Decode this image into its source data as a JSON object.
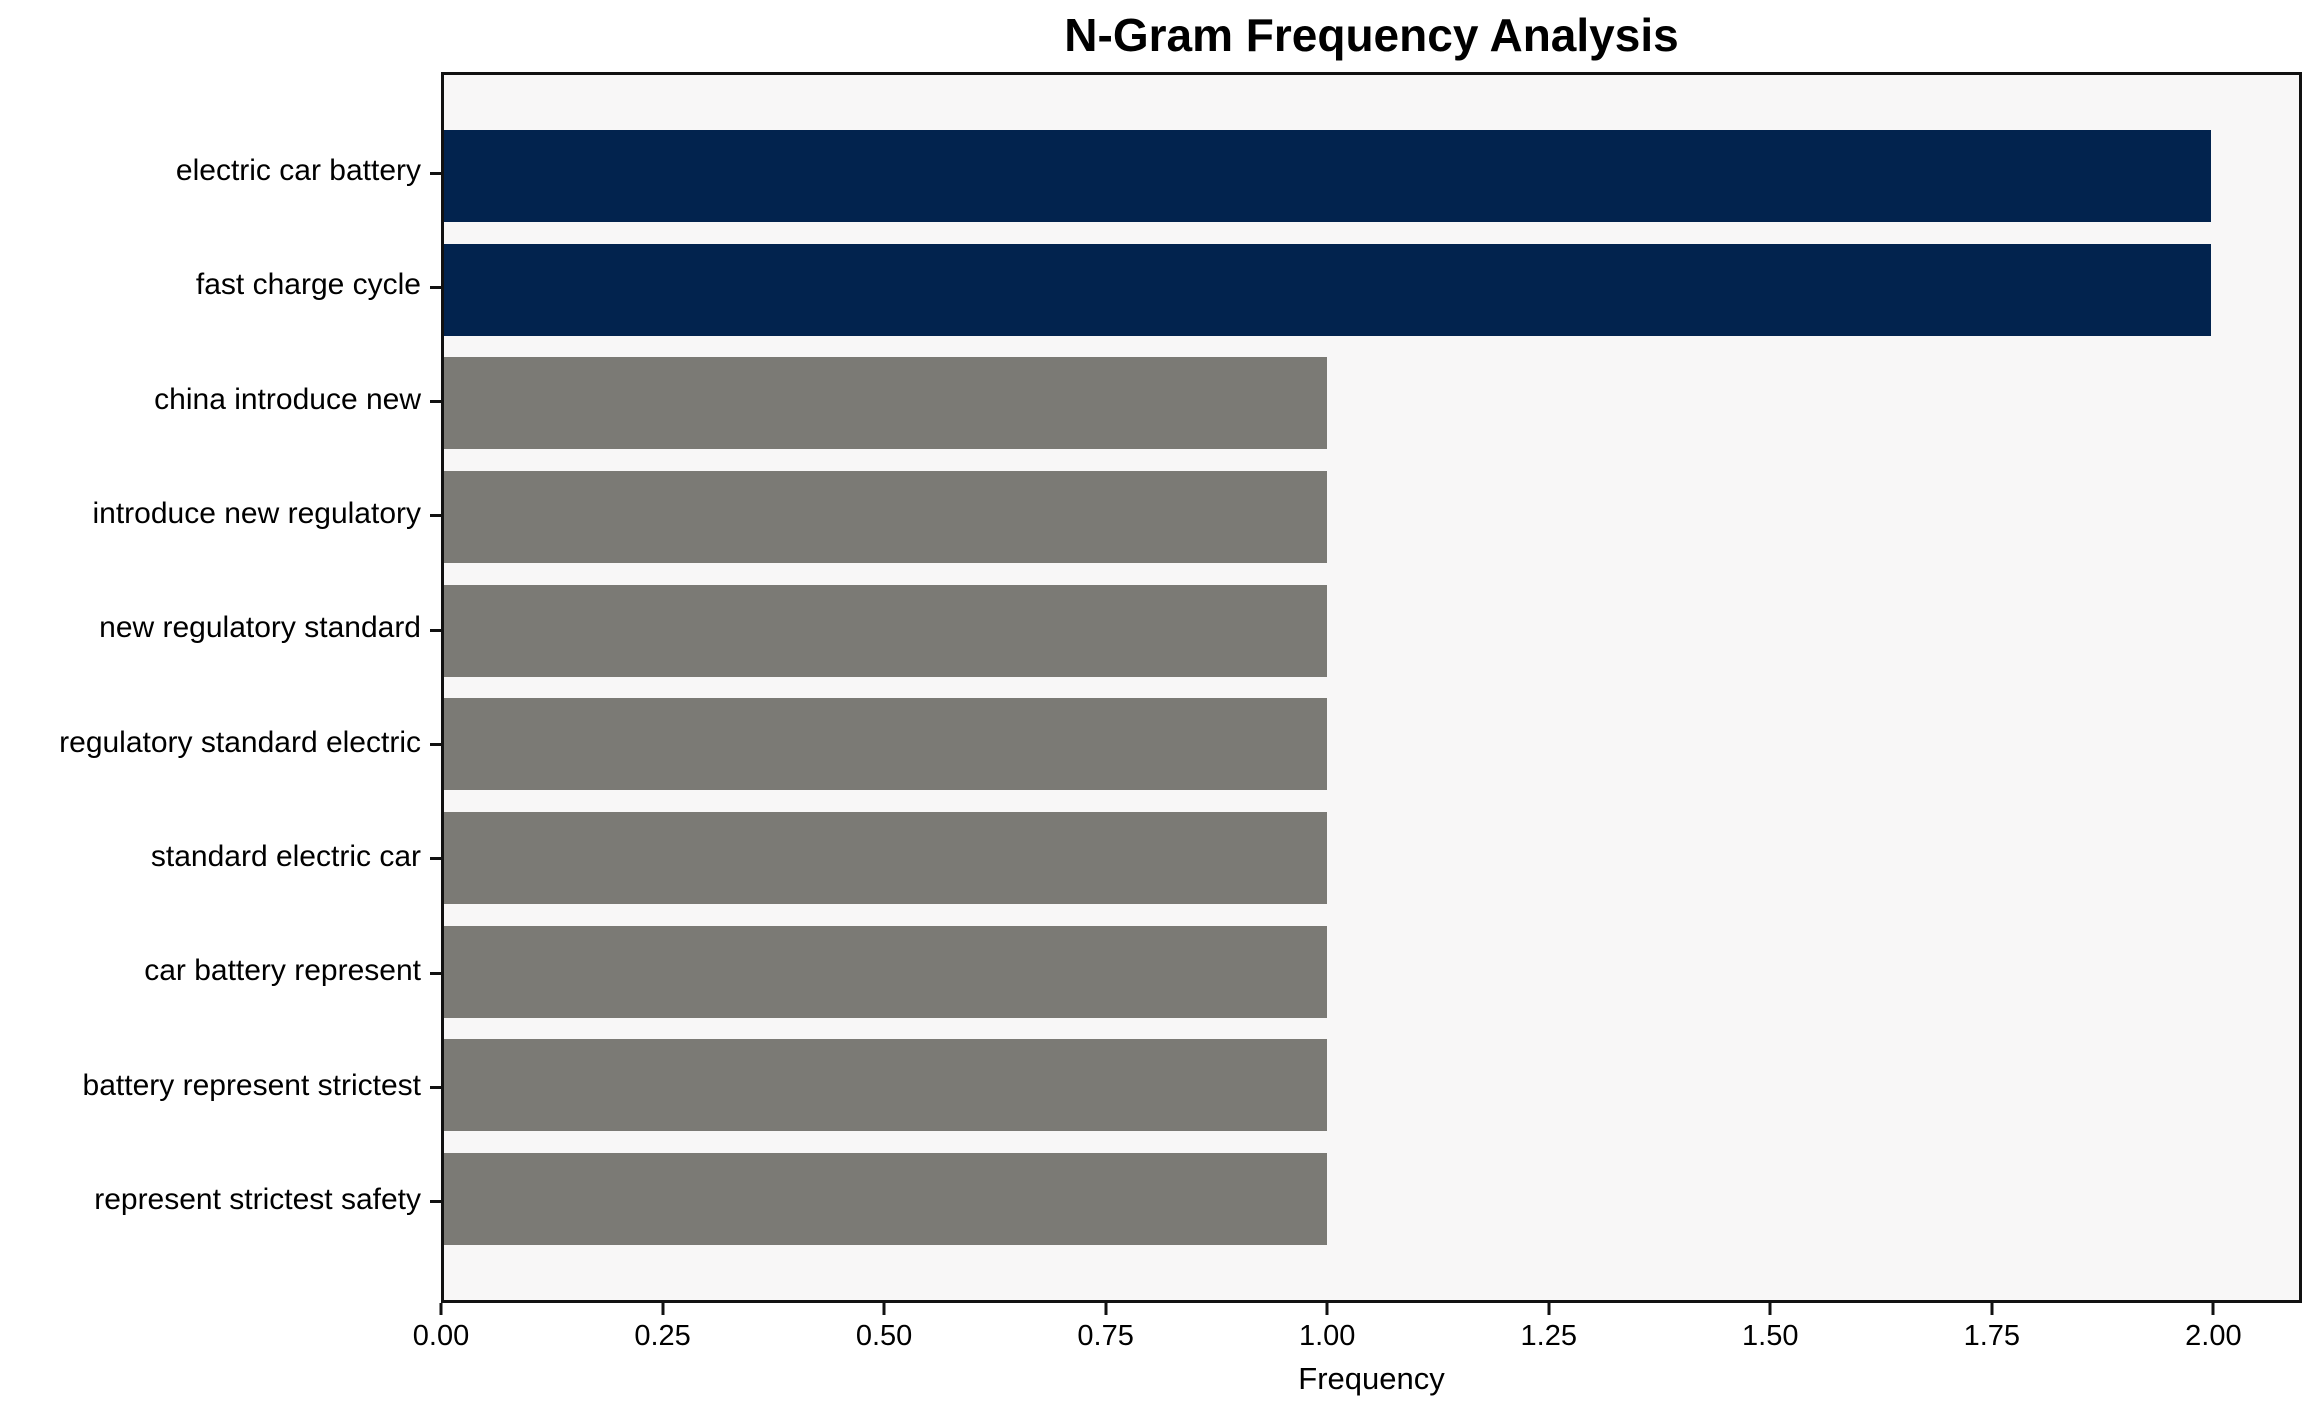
{
  "chart_data": {
    "type": "bar",
    "orientation": "horizontal",
    "title": "N-Gram Frequency Analysis",
    "xlabel": "Frequency",
    "ylabel": "",
    "categories": [
      "electric car battery",
      "fast charge cycle",
      "china introduce new",
      "introduce new regulatory",
      "new regulatory standard",
      "regulatory standard electric",
      "standard electric car",
      "car battery represent",
      "battery represent strictest",
      "represent strictest safety"
    ],
    "values": [
      2,
      2,
      1,
      1,
      1,
      1,
      1,
      1,
      1,
      1
    ],
    "bar_colors": [
      "#02234e",
      "#02234e",
      "#7b7a75",
      "#7b7a75",
      "#7b7a75",
      "#7b7a75",
      "#7b7a75",
      "#7b7a75",
      "#7b7a75",
      "#7b7a75"
    ],
    "xlim": [
      0,
      2.1
    ],
    "xticks": [
      0,
      0.25,
      0.5,
      0.75,
      1.0,
      1.25,
      1.5,
      1.75,
      2.0
    ],
    "xtick_labels": [
      "0.00",
      "0.25",
      "0.50",
      "0.75",
      "1.00",
      "1.25",
      "1.50",
      "1.75",
      "2.00"
    ],
    "grid": false,
    "legend_position": "none",
    "colors": {
      "highlight_bar": "#02234e",
      "default_bar": "#7b7a75",
      "plot_background": "#f8f7f7",
      "figure_background": "#ffffff",
      "spine": "#111111",
      "text": "#000000"
    }
  }
}
